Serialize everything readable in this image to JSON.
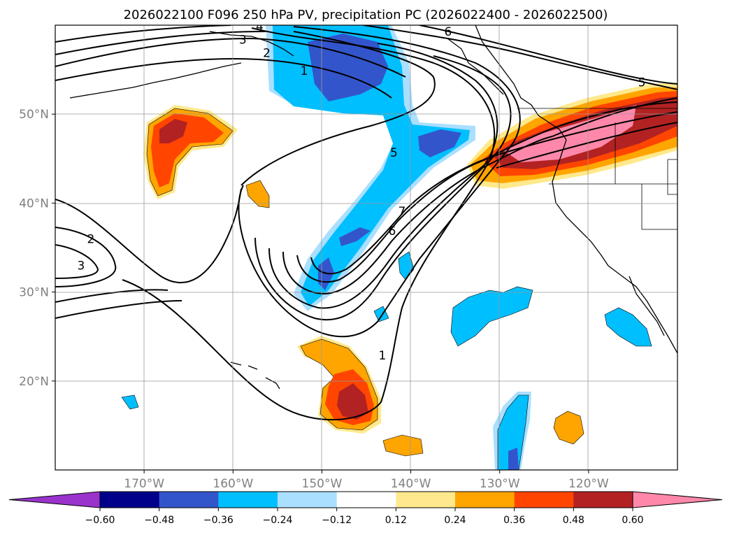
{
  "chart_data": {
    "type": "contour-map",
    "title": "2026022100 F096 250 hPa PV, precipitation PC (2026022400 - 2026022500)",
    "region": {
      "lon_range": [
        -180,
        -110
      ],
      "lat_range": [
        10,
        60
      ]
    },
    "grid": true,
    "lat_ticks": [
      {
        "value": 50,
        "label": "50°N"
      },
      {
        "value": 40,
        "label": "40°N"
      },
      {
        "value": 30,
        "label": "30°N"
      },
      {
        "value": 20,
        "label": "20°N"
      }
    ],
    "lon_ticks": [
      {
        "value": -170,
        "label": "170°W"
      },
      {
        "value": -160,
        "label": "160°W"
      },
      {
        "value": -150,
        "label": "150°W"
      },
      {
        "value": -140,
        "label": "140°W"
      },
      {
        "value": -130,
        "label": "130°W"
      },
      {
        "value": -120,
        "label": "120°W"
      }
    ],
    "colorbar": {
      "levels": [
        -0.6,
        -0.48,
        -0.36,
        -0.24,
        -0.12,
        0.12,
        0.24,
        0.36,
        0.48,
        0.6
      ],
      "tick_labels": [
        "−0.60",
        "−0.48",
        "−0.36",
        "−0.24",
        "−0.12",
        "0.12",
        "0.24",
        "0.36",
        "0.48",
        "0.60"
      ],
      "colors": [
        "#9933cc",
        "#00008b",
        "#3355cc",
        "#00bfff",
        "#aadfff",
        "#ffffff",
        "#ffe98c",
        "#ffa500",
        "#ff4500",
        "#b22222",
        "#ff88aa"
      ],
      "extend": "both"
    },
    "pv_contour_labels": [
      {
        "text": "4",
        "lon": -157.0,
        "lat": 59.8
      },
      {
        "text": "3",
        "lon": -158.9,
        "lat": 58.3
      },
      {
        "text": "2",
        "lon": -156.2,
        "lat": 56.8
      },
      {
        "text": "1",
        "lon": -152.0,
        "lat": 54.8
      },
      {
        "text": "6",
        "lon": -135.8,
        "lat": 59.2
      },
      {
        "text": "5",
        "lon": -114.0,
        "lat": 53.5
      },
      {
        "text": "5",
        "lon": -141.9,
        "lat": 45.6
      },
      {
        "text": "7",
        "lon": -141.0,
        "lat": 39.0
      },
      {
        "text": "6",
        "lon": -142.1,
        "lat": 36.8
      },
      {
        "text": "2",
        "lon": -176.0,
        "lat": 35.9
      },
      {
        "text": "3",
        "lon": -177.1,
        "lat": 32.9
      },
      {
        "text": "1",
        "lon": -143.2,
        "lat": 22.8
      }
    ]
  }
}
